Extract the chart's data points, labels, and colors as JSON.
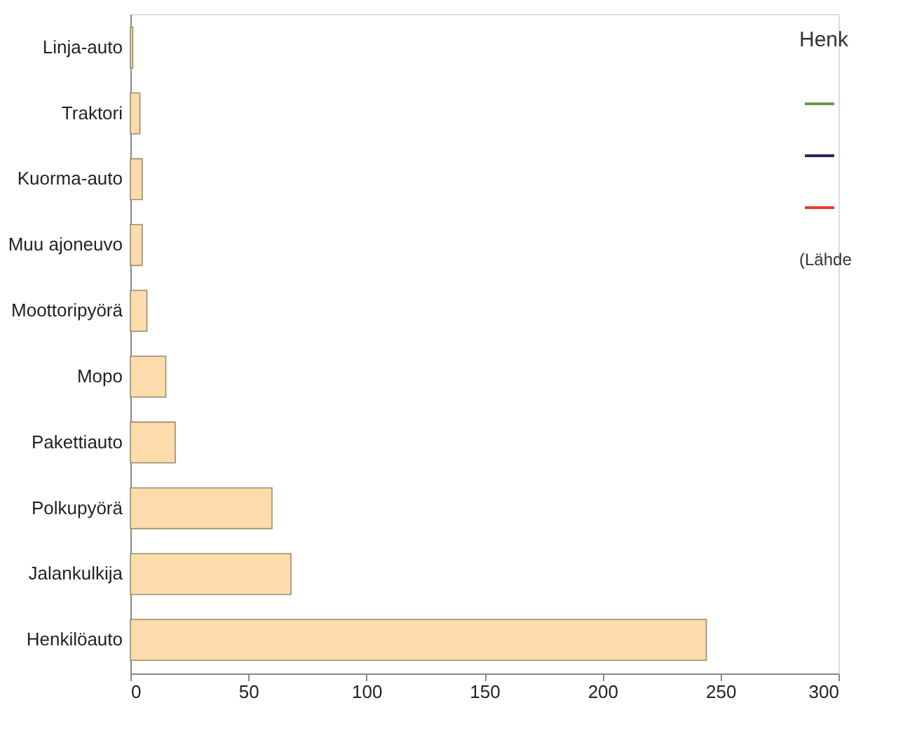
{
  "chart_data": {
    "type": "bar",
    "orientation": "horizontal",
    "categories": [
      "Linja-auto",
      "Traktori",
      "Kuorma-auto",
      "Muu ajoneuvo",
      "Moottoripyörä",
      "Mopo",
      "Pakettiauto",
      "Polkupyörä",
      "Jalankulkija",
      "Henkilöauto"
    ],
    "series": [
      {
        "color": "#fcdcab",
        "values": [
          1,
          4,
          5,
          5,
          7,
          15,
          19,
          60,
          68,
          244
        ]
      }
    ],
    "annotations": [
      "Henk",
      "(Lähde"
    ],
    "xlim": [
      0,
      300
    ],
    "xticks": [
      0,
      50,
      100,
      150,
      200,
      250,
      300
    ],
    "grid": false
  }
}
